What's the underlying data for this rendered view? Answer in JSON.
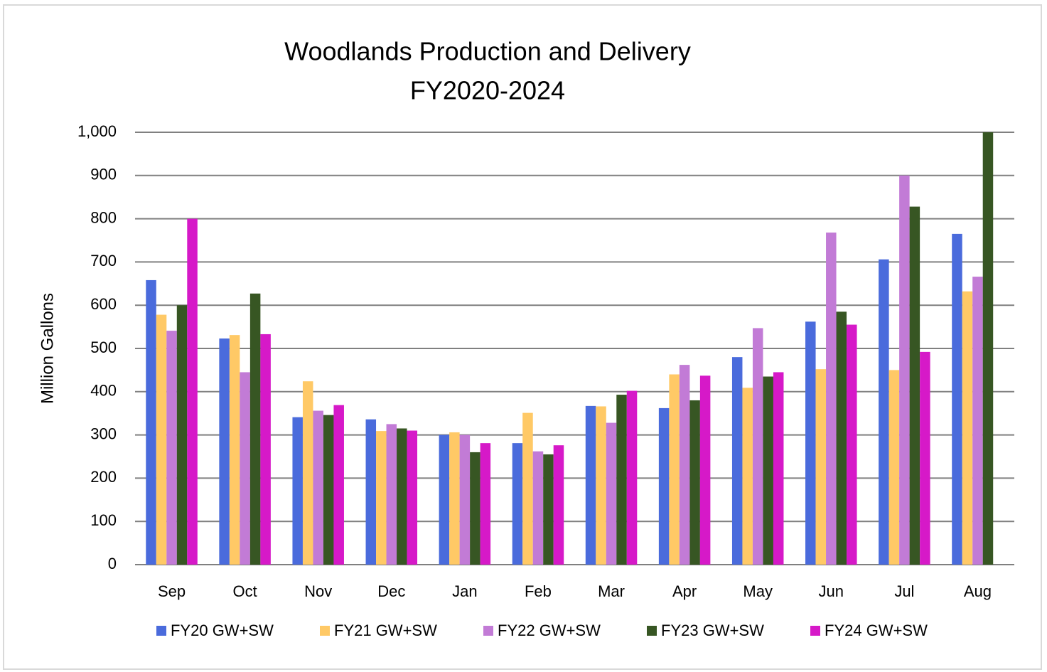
{
  "chart_data": {
    "type": "bar",
    "title": "Woodlands Production and Delivery",
    "subtitle": "FY2020-2024",
    "y_label": "Million Gallons",
    "categories": [
      "Sep",
      "Oct",
      "Nov",
      "Dec",
      "Jan",
      "Feb",
      "Mar",
      "Apr",
      "May",
      "Jun",
      "Jul",
      "Aug"
    ],
    "series": [
      {
        "name": "FY20 GW+SW",
        "color": "#4a6bdc",
        "values": [
          658,
          523,
          341,
          336,
          300,
          281,
          367,
          362,
          480,
          562,
          706,
          765
        ]
      },
      {
        "name": "FY21 GW+SW",
        "color": "#ffc966",
        "values": [
          578,
          531,
          424,
          309,
          306,
          351,
          366,
          440,
          409,
          452,
          450,
          632
        ]
      },
      {
        "name": "FY22 GW+SW",
        "color": "#c27bd6",
        "values": [
          541,
          445,
          356,
          325,
          300,
          262,
          328,
          462,
          547,
          768,
          900,
          666
        ]
      },
      {
        "name": "FY23 GW+SW",
        "color": "#375623",
        "values": [
          600,
          627,
          346,
          315,
          260,
          255,
          393,
          380,
          435,
          585,
          828,
          1000
        ]
      },
      {
        "name": "FY24 GW+SW",
        "color": "#d619c8",
        "values": [
          800,
          533,
          369,
          310,
          281,
          276,
          402,
          437,
          445,
          555,
          492,
          null
        ]
      }
    ],
    "ylim": [
      0,
      1000
    ],
    "yticks": [
      0,
      100,
      200,
      300,
      400,
      500,
      600,
      700,
      800,
      900,
      {
        "value": 1000,
        "label": "1,000"
      }
    ],
    "grid": true,
    "legend": "bottom"
  }
}
